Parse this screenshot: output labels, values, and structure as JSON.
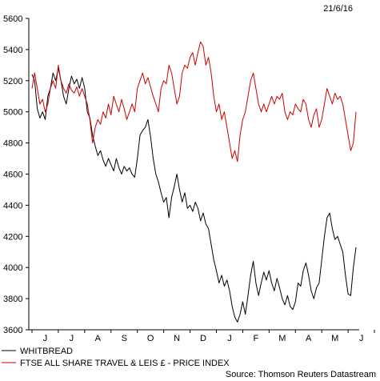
{
  "date_label": "21/6/16",
  "source": "Source: Thomson Reuters Datastream",
  "chart_data": {
    "type": "line",
    "title": "",
    "xlabel": "",
    "ylabel": "",
    "ylim": [
      3600,
      5600
    ],
    "yticks": [
      3600,
      3800,
      4000,
      4200,
      4400,
      4600,
      4800,
      5000,
      5200,
      5400,
      5600
    ],
    "x_range": [
      0,
      12.3
    ],
    "month_labels": [
      "J",
      "J",
      "A",
      "S",
      "O",
      "N",
      "D",
      "J",
      "F",
      "M",
      "A",
      "M",
      "J"
    ],
    "grid": false,
    "legend_position": "bottom-left",
    "series": [
      {
        "name": "WHITBREAD",
        "color": "#000000",
        "points": [
          [
            0.0,
            5240
          ],
          [
            0.1,
            5200
          ],
          [
            0.2,
            5020
          ],
          [
            0.3,
            4960
          ],
          [
            0.4,
            5000
          ],
          [
            0.5,
            4950
          ],
          [
            0.6,
            5100
          ],
          [
            0.7,
            5150
          ],
          [
            0.8,
            5250
          ],
          [
            0.9,
            5200
          ],
          [
            1.0,
            5280
          ],
          [
            1.1,
            5200
          ],
          [
            1.2,
            5100
          ],
          [
            1.3,
            5050
          ],
          [
            1.4,
            5150
          ],
          [
            1.5,
            5230
          ],
          [
            1.6,
            5180
          ],
          [
            1.7,
            5210
          ],
          [
            1.8,
            5150
          ],
          [
            1.9,
            5220
          ],
          [
            2.0,
            5150
          ],
          [
            2.1,
            5000
          ],
          [
            2.2,
            4960
          ],
          [
            2.3,
            4850
          ],
          [
            2.4,
            4780
          ],
          [
            2.5,
            4720
          ],
          [
            2.6,
            4750
          ],
          [
            2.7,
            4690
          ],
          [
            2.8,
            4650
          ],
          [
            2.9,
            4700
          ],
          [
            3.0,
            4660
          ],
          [
            3.1,
            4620
          ],
          [
            3.2,
            4700
          ],
          [
            3.3,
            4640
          ],
          [
            3.4,
            4600
          ],
          [
            3.5,
            4650
          ],
          [
            3.6,
            4620
          ],
          [
            3.7,
            4640
          ],
          [
            3.8,
            4600
          ],
          [
            3.9,
            4580
          ],
          [
            4.0,
            4700
          ],
          [
            4.1,
            4850
          ],
          [
            4.2,
            4880
          ],
          [
            4.3,
            4900
          ],
          [
            4.4,
            4950
          ],
          [
            4.5,
            4840
          ],
          [
            4.6,
            4700
          ],
          [
            4.7,
            4600
          ],
          [
            4.8,
            4550
          ],
          [
            4.9,
            4480
          ],
          [
            5.0,
            4420
          ],
          [
            5.1,
            4450
          ],
          [
            5.2,
            4320
          ],
          [
            5.3,
            4450
          ],
          [
            5.4,
            4520
          ],
          [
            5.5,
            4600
          ],
          [
            5.6,
            4500
          ],
          [
            5.7,
            4420
          ],
          [
            5.8,
            4480
          ],
          [
            5.9,
            4380
          ],
          [
            6.0,
            4400
          ],
          [
            6.1,
            4360
          ],
          [
            6.2,
            4420
          ],
          [
            6.3,
            4380
          ],
          [
            6.4,
            4300
          ],
          [
            6.5,
            4350
          ],
          [
            6.6,
            4280
          ],
          [
            6.7,
            4250
          ],
          [
            6.8,
            4150
          ],
          [
            6.9,
            4050
          ],
          [
            7.0,
            3980
          ],
          [
            7.1,
            3900
          ],
          [
            7.2,
            3950
          ],
          [
            7.3,
            3880
          ],
          [
            7.4,
            3920
          ],
          [
            7.5,
            3850
          ],
          [
            7.6,
            3750
          ],
          [
            7.7,
            3680
          ],
          [
            7.8,
            3650
          ],
          [
            7.9,
            3700
          ],
          [
            8.0,
            3780
          ],
          [
            8.1,
            3700
          ],
          [
            8.2,
            3820
          ],
          [
            8.3,
            3950
          ],
          [
            8.4,
            4040
          ],
          [
            8.5,
            3900
          ],
          [
            8.6,
            3820
          ],
          [
            8.7,
            3900
          ],
          [
            8.8,
            3970
          ],
          [
            8.9,
            3920
          ],
          [
            9.0,
            3980
          ],
          [
            9.1,
            3900
          ],
          [
            9.2,
            3850
          ],
          [
            9.3,
            3930
          ],
          [
            9.4,
            3870
          ],
          [
            9.5,
            3800
          ],
          [
            9.6,
            3760
          ],
          [
            9.7,
            3820
          ],
          [
            9.8,
            3750
          ],
          [
            9.9,
            3730
          ],
          [
            10.0,
            3780
          ],
          [
            10.1,
            3900
          ],
          [
            10.2,
            3880
          ],
          [
            10.3,
            3980
          ],
          [
            10.4,
            4030
          ],
          [
            10.5,
            3950
          ],
          [
            10.6,
            3850
          ],
          [
            10.7,
            3800
          ],
          [
            10.8,
            3870
          ],
          [
            10.9,
            3900
          ],
          [
            11.0,
            4050
          ],
          [
            11.1,
            4200
          ],
          [
            11.2,
            4320
          ],
          [
            11.3,
            4350
          ],
          [
            11.4,
            4250
          ],
          [
            11.5,
            4180
          ],
          [
            11.6,
            4200
          ],
          [
            11.7,
            4150
          ],
          [
            11.8,
            4100
          ],
          [
            11.9,
            3950
          ],
          [
            12.0,
            3830
          ],
          [
            12.1,
            3820
          ],
          [
            12.2,
            4000
          ],
          [
            12.3,
            4130
          ]
        ]
      },
      {
        "name": "FTSE ALL SHARE TRAVEL & LEIS £ - PRICE INDEX",
        "color": "#cc0000",
        "points": [
          [
            0.0,
            5150
          ],
          [
            0.1,
            5250
          ],
          [
            0.2,
            5150
          ],
          [
            0.3,
            5050
          ],
          [
            0.4,
            5080
          ],
          [
            0.5,
            5000
          ],
          [
            0.6,
            5050
          ],
          [
            0.7,
            5150
          ],
          [
            0.8,
            5200
          ],
          [
            0.9,
            5150
          ],
          [
            1.0,
            5300
          ],
          [
            1.1,
            5200
          ],
          [
            1.2,
            5150
          ],
          [
            1.3,
            5120
          ],
          [
            1.4,
            5180
          ],
          [
            1.5,
            5140
          ],
          [
            1.6,
            5120
          ],
          [
            1.7,
            5160
          ],
          [
            1.8,
            5100
          ],
          [
            1.9,
            5150
          ],
          [
            2.0,
            5100
          ],
          [
            2.1,
            5050
          ],
          [
            2.2,
            4950
          ],
          [
            2.3,
            4800
          ],
          [
            2.4,
            4900
          ],
          [
            2.5,
            4950
          ],
          [
            2.6,
            4920
          ],
          [
            2.7,
            5000
          ],
          [
            2.8,
            4960
          ],
          [
            2.9,
            5050
          ],
          [
            3.0,
            4980
          ],
          [
            3.1,
            5100
          ],
          [
            3.2,
            5050
          ],
          [
            3.3,
            5000
          ],
          [
            3.4,
            5080
          ],
          [
            3.5,
            5020
          ],
          [
            3.6,
            4950
          ],
          [
            3.7,
            5000
          ],
          [
            3.8,
            5050
          ],
          [
            3.9,
            5000
          ],
          [
            4.0,
            5150
          ],
          [
            4.1,
            5200
          ],
          [
            4.2,
            5250
          ],
          [
            4.3,
            5180
          ],
          [
            4.4,
            5220
          ],
          [
            4.5,
            5160
          ],
          [
            4.6,
            5100
          ],
          [
            4.7,
            5050
          ],
          [
            4.8,
            5000
          ],
          [
            4.9,
            5150
          ],
          [
            5.0,
            5200
          ],
          [
            5.1,
            5180
          ],
          [
            5.2,
            5300
          ],
          [
            5.3,
            5250
          ],
          [
            5.4,
            5150
          ],
          [
            5.5,
            5050
          ],
          [
            5.6,
            5100
          ],
          [
            5.7,
            5250
          ],
          [
            5.8,
            5300
          ],
          [
            5.9,
            5280
          ],
          [
            6.0,
            5350
          ],
          [
            6.1,
            5380
          ],
          [
            6.2,
            5300
          ],
          [
            6.3,
            5380
          ],
          [
            6.4,
            5450
          ],
          [
            6.5,
            5420
          ],
          [
            6.6,
            5300
          ],
          [
            6.7,
            5350
          ],
          [
            6.8,
            5250
          ],
          [
            6.9,
            5100
          ],
          [
            7.0,
            5000
          ],
          [
            7.1,
            5050
          ],
          [
            7.2,
            4950
          ],
          [
            7.3,
            5000
          ],
          [
            7.4,
            4900
          ],
          [
            7.5,
            4800
          ],
          [
            7.6,
            4700
          ],
          [
            7.7,
            4750
          ],
          [
            7.8,
            4680
          ],
          [
            7.9,
            4850
          ],
          [
            8.0,
            4950
          ],
          [
            8.1,
            5000
          ],
          [
            8.2,
            5100
          ],
          [
            8.3,
            5200
          ],
          [
            8.4,
            5250
          ],
          [
            8.5,
            5150
          ],
          [
            8.6,
            5050
          ],
          [
            8.7,
            5000
          ],
          [
            8.8,
            5050
          ],
          [
            8.9,
            5000
          ],
          [
            9.0,
            5050
          ],
          [
            9.1,
            5100
          ],
          [
            9.2,
            5050
          ],
          [
            9.3,
            5100
          ],
          [
            9.4,
            5080
          ],
          [
            9.5,
            5120
          ],
          [
            9.6,
            5000
          ],
          [
            9.7,
            4950
          ],
          [
            9.8,
            5000
          ],
          [
            9.9,
            4980
          ],
          [
            10.0,
            5050
          ],
          [
            10.1,
            5020
          ],
          [
            10.2,
            5000
          ],
          [
            10.3,
            5080
          ],
          [
            10.4,
            5050
          ],
          [
            10.5,
            4950
          ],
          [
            10.6,
            4900
          ],
          [
            10.7,
            4980
          ],
          [
            10.8,
            5020
          ],
          [
            10.9,
            4900
          ],
          [
            11.0,
            4950
          ],
          [
            11.1,
            5050
          ],
          [
            11.2,
            5150
          ],
          [
            11.3,
            5100
          ],
          [
            11.4,
            5050
          ],
          [
            11.5,
            5120
          ],
          [
            11.6,
            5080
          ],
          [
            11.7,
            5100
          ],
          [
            11.8,
            5050
          ],
          [
            11.9,
            4950
          ],
          [
            12.0,
            4850
          ],
          [
            12.1,
            4750
          ],
          [
            12.2,
            4800
          ],
          [
            12.3,
            5000
          ]
        ]
      }
    ]
  }
}
